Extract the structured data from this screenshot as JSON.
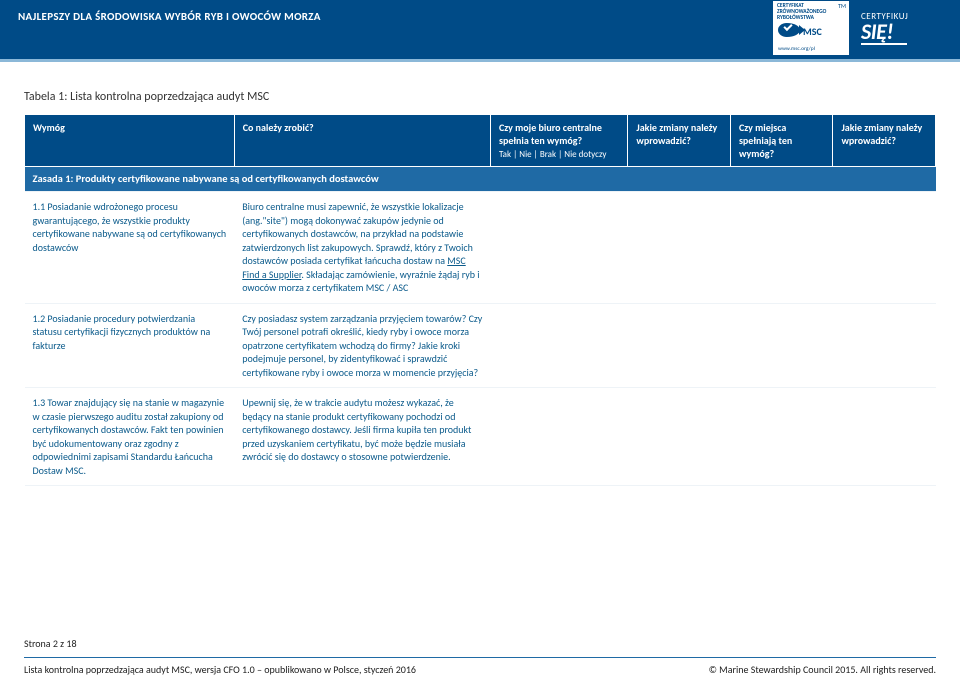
{
  "colors": {
    "primary": "#004b87",
    "primary_light": "#1f6aa5",
    "accent_border": "#8bb8d8",
    "text_blue": "#0d5c8c",
    "row_border": "#eef3f7",
    "white": "#ffffff",
    "black": "#222222"
  },
  "banner": {
    "title": "NAJLEPSZY DLA ŚRODOWISKA WYBÓR RYB I OWOCÓW MORZA",
    "badge_left": {
      "line1": "CERTYFIKAT",
      "line2": "ZRÓWNOWAŻONEGO",
      "line3": "RYBOŁÓWSTWA",
      "msc": "MSC",
      "url": "www.msc.org/pl",
      "tm": "TM"
    },
    "badge_right": {
      "line1": "CERTYFIKUJ",
      "line2": "SIĘ!"
    }
  },
  "table": {
    "caption": "Tabela 1: Lista kontrolna poprzedzająca audyt MSC",
    "headers": {
      "h1": "Wymóg",
      "h2": "Co należy zrobić?",
      "h3": "Czy moje biuro centralne spełnia ten wymóg?",
      "h3_sub": "Tak | Nie | Brak | Nie dotyczy",
      "h4": "Jakie zmiany należy wprowadzić?",
      "h5": "Czy miejsca spełniają ten wymóg?",
      "h6": "Jakie zmiany należy wprowadzić?"
    },
    "zasada": "Zasada 1: Produkty certyfikowane nabywane są od certyfikowanych dostawców",
    "rows": [
      {
        "req": "1.1 Posiadanie wdrożonego procesu gwarantującego, że wszystkie produkty certyfikowane nabywane są od certyfikowanych dostawców",
        "action_pre": "Biuro centralne musi zapewnić, że wszystkie lokalizacje (ang.\"site\") mogą dokonywać zakupów jedynie od certyfikowanych dostawców, na przykład na podstawie zatwierdzonych list zakupowych. Sprawdź, który z Twoich dostawców posiada certyfikat łańcucha dostaw na ",
        "action_link": "MSC Find a Supplier",
        "action_post": ". Składając zamówienie, wyraźnie żądaj ryb i owoców morza z certyfikatem MSC / ASC"
      },
      {
        "req": "1.2 Posiadanie procedury potwierdzania statusu certyfikacji fizycznych produktów na fakturze",
        "action": "Czy posiadasz system zarządzania przyjęciem towarów? Czy Twój personel potrafi określić, kiedy ryby i owoce morza opatrzone certyfikatem wchodzą do firmy? Jakie kroki podejmuje personel, by zidentyfikować i sprawdzić certyfikowane ryby i owoce morza w momencie przyjęcia?"
      },
      {
        "req": "1.3 Towar znajdujący się na stanie w magazynie w czasie pierwszego auditu został zakupiony od certyfikowanych dostawców. Fakt ten powinien być udokumentowany oraz zgodny z odpowiednimi zapisami Standardu Łańcucha Dostaw MSC.",
        "action": "Upewnij się, że w trakcie audytu możesz wykazać, że będący na stanie produkt certyfikowany pochodzi od certyfikowanego dostawcy. Jeśli firma kupiła ten produkt przed uzyskaniem certyfikatu, być może będzie musiała zwrócić się do dostawcy o stosowne potwierdzenie."
      }
    ]
  },
  "footer": {
    "page": "Strona 2 z 18",
    "left": "Lista kontrolna poprzedzająca audyt MSC, wersja CFO 1.0 – opublikowano w Polsce, styczeń 2016",
    "right": "© Marine Stewardship Council 2015. All rights reserved."
  }
}
